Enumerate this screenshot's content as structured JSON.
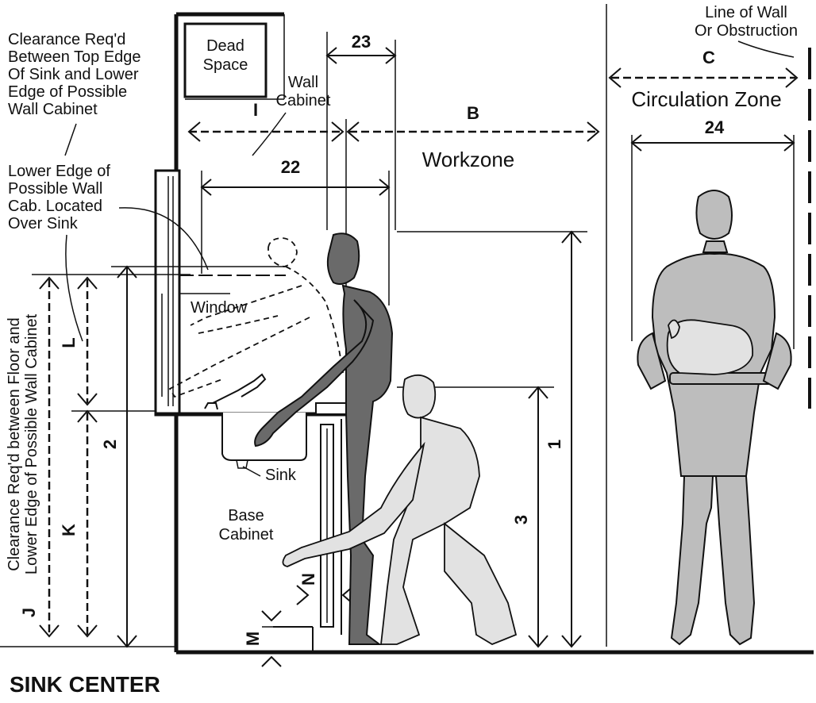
{
  "title": "SINK CENTER",
  "labels": {
    "dead_space": [
      "Dead",
      "Space"
    ],
    "wall_cabinet": [
      "Wall",
      "Cabinet"
    ],
    "window": "Window",
    "sink": "Sink",
    "base_cabinet": [
      "Base",
      "Cabinet"
    ],
    "workzone": "Workzone",
    "circulation_zone": "Circulation Zone",
    "line_of_wall": [
      "Line of Wall",
      "Or Obstruction"
    ],
    "clearance_top": [
      "Clearance Req'd",
      "Between Top Edge",
      "Of Sink and Lower",
      "Edge of Possible",
      "Wall Cabinet"
    ],
    "lower_edge": [
      "Lower Edge of",
      "Possible Wall",
      "Cab. Located",
      "Over Sink"
    ],
    "clearance_floor": [
      "Clearance Req'd between Floor and",
      "Lower Edge of Possible Wall Cabinet"
    ]
  },
  "dimensions": {
    "d23": "23",
    "d22": "22",
    "d24": "24",
    "d1": "1",
    "d2": "2",
    "d3": "3",
    "I": "I",
    "B": "B",
    "C": "C",
    "L": "L",
    "K": "K",
    "J": "J",
    "M": "M",
    "N": "N"
  }
}
